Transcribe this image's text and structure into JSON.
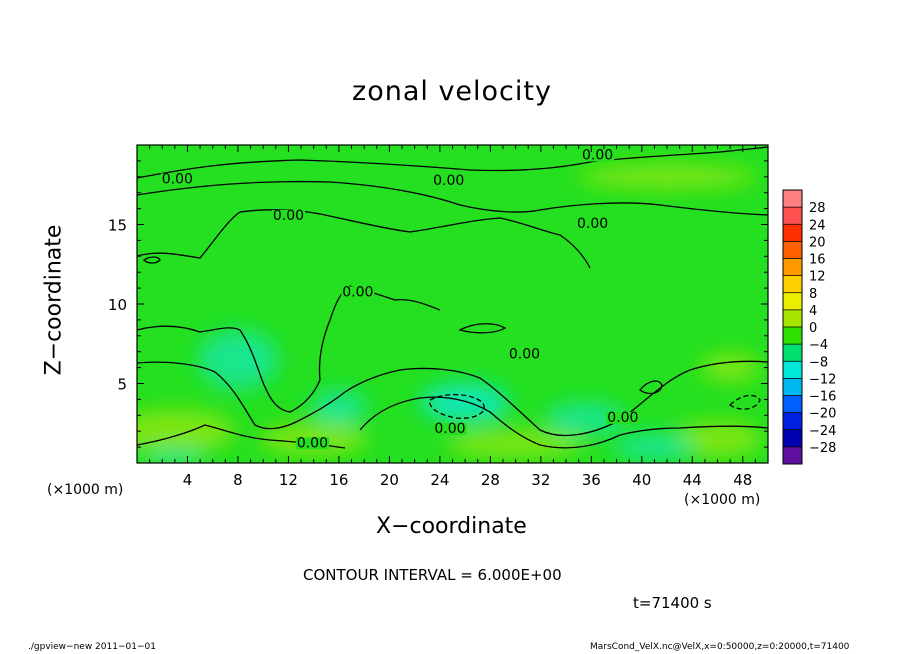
{
  "chart_data": {
    "type": "heatmap",
    "title": "zonal velocity",
    "xlabel": "X−coordinate",
    "ylabel": "Z−coordinate",
    "x_unit_left": "(×1000 m)",
    "x_unit_right": "(×1000 m)",
    "x_ticks": [
      "4",
      "8",
      "12",
      "16",
      "20",
      "24",
      "28",
      "32",
      "36",
      "40",
      "44",
      "48"
    ],
    "x_tick_values": [
      4,
      8,
      12,
      16,
      20,
      24,
      28,
      32,
      36,
      40,
      44,
      48
    ],
    "y_ticks": [
      "5",
      "10",
      "15"
    ],
    "y_tick_values": [
      5,
      10,
      15
    ],
    "xlim": [
      0,
      50
    ],
    "ylim": [
      0,
      20
    ],
    "contour_interval_text": "CONTOUR INTERVAL = 6.000E+00",
    "contour_labels": [
      {
        "text": "0.00",
        "x": 36.5,
        "z": 19.4
      },
      {
        "text": "0.00",
        "x": 3.2,
        "z": 17.9
      },
      {
        "text": "0.00",
        "x": 24.7,
        "z": 17.8
      },
      {
        "text": "0.00",
        "x": 12,
        "z": 15.6
      },
      {
        "text": "0.00",
        "x": 36.1,
        "z": 15.1
      },
      {
        "text": "0.00",
        "x": 17.5,
        "z": 10.8
      },
      {
        "text": "0.00",
        "x": 30.7,
        "z": 6.9
      },
      {
        "text": "0.00",
        "x": 38.5,
        "z": 2.9
      },
      {
        "text": "0.00",
        "x": 24.8,
        "z": 2.2
      },
      {
        "text": "0.00",
        "x": 13.9,
        "z": 1.3
      }
    ],
    "colorbar": {
      "levels": [
        28,
        24,
        20,
        16,
        12,
        8,
        4,
        0,
        -4,
        -8,
        -12,
        -16,
        -20,
        -24,
        -28
      ],
      "labels": [
        "28",
        "24",
        "20",
        "16",
        "12",
        "8",
        "4",
        "0",
        "−4",
        "−8",
        "−12",
        "−16",
        "−20",
        "−24",
        "−28"
      ],
      "colors": [
        "#ff8080",
        "#ff5050",
        "#ff3000",
        "#ff6000",
        "#ff9a00",
        "#ffd000",
        "#e8f000",
        "#a8e600",
        "#30e000",
        "#00e070",
        "#00e8d8",
        "#00b8f0",
        "#0060ff",
        "#0020e0",
        "#0000b0",
        "#6010a0"
      ]
    },
    "field_colors": {
      "background": "#24e020",
      "positive": "#8ee610",
      "negative": "#18e6a0",
      "negative_strong": "#10e8c8"
    }
  },
  "annotations": {
    "time": "t=71400 s",
    "footer_left": "./gpview−new   2011−01−01",
    "footer_right": "MarsCond_VelX.nc@VelX,x=0:50000,z=0:20000,t=71400"
  }
}
